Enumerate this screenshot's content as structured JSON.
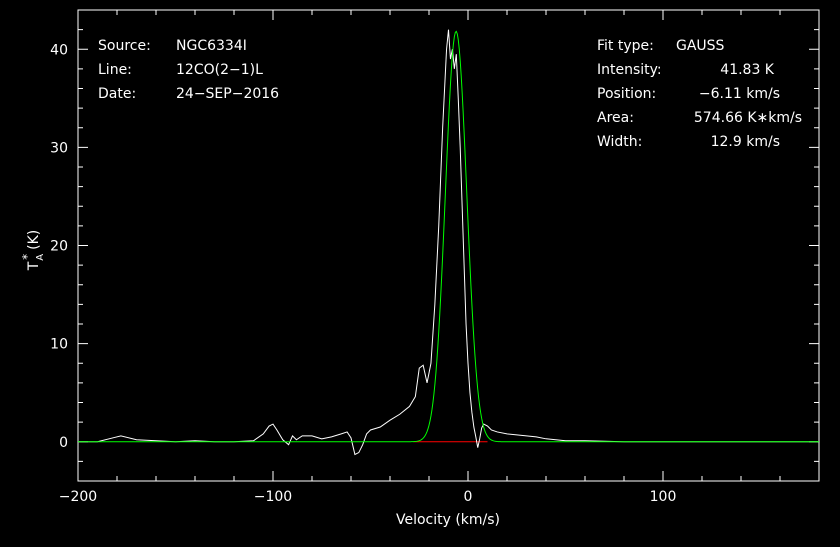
{
  "chart_data": {
    "type": "line",
    "xlabel": "Velocity (km/s)",
    "ylabel": "T_A^* (K)",
    "xlim": [
      -200,
      180
    ],
    "ylim": [
      -4,
      44
    ],
    "x_ticks": [
      -200,
      -100,
      0,
      100
    ],
    "x_tick_labels": [
      "−200",
      "−100",
      "0",
      "100"
    ],
    "y_ticks": [
      0,
      10,
      20,
      30,
      40
    ],
    "y_tick_labels": [
      "0",
      "10",
      "20",
      "30",
      "40"
    ],
    "grid": false,
    "legend": "none",
    "series": [
      {
        "color": "#ffffff",
        "x": [
          -200,
          -190,
          -182,
          -178,
          -170,
          -160,
          -150,
          -140,
          -130,
          -120,
          -110,
          -105,
          -102,
          -100,
          -98,
          -95,
          -92,
          -90,
          -88,
          -85,
          -80,
          -75,
          -70,
          -65,
          -62,
          -60,
          -58,
          -56,
          -54,
          -52,
          -50,
          -45,
          -40,
          -35,
          -30,
          -27,
          -25,
          -23,
          -21,
          -19,
          -17,
          -15,
          -13,
          -11,
          -10,
          -9,
          -8,
          -7,
          -6,
          -5,
          -4,
          -3,
          -2,
          -1,
          0,
          1,
          2,
          3,
          4,
          5,
          6,
          7,
          8,
          10,
          12,
          15,
          20,
          25,
          30,
          35,
          40,
          45,
          50,
          60,
          80,
          100,
          120,
          140,
          160,
          180
        ],
        "y": [
          0,
          0,
          0.4,
          0.6,
          0.2,
          0.1,
          0,
          0.1,
          0,
          0,
          0.1,
          0.8,
          1.6,
          1.8,
          1.2,
          0.2,
          -0.3,
          0.6,
          0.2,
          0.6,
          0.6,
          0.3,
          0.5,
          0.8,
          1.0,
          0.4,
          -1.3,
          -1.1,
          -0.3,
          0.8,
          1.2,
          1.5,
          2.2,
          2.8,
          3.6,
          4.6,
          7.5,
          7.8,
          6.0,
          8.0,
          14,
          22,
          32,
          40,
          42,
          39,
          40,
          38,
          39.5,
          35,
          30,
          24,
          18,
          12,
          8,
          5,
          3,
          1.5,
          0.5,
          -0.6,
          0.3,
          1.4,
          1.8,
          1.6,
          1.2,
          1.0,
          0.8,
          0.7,
          0.6,
          0.5,
          0.3,
          0.2,
          0.1,
          0.1,
          0,
          0,
          0,
          0,
          0,
          0
        ]
      },
      {
        "color": "#00ff00",
        "fit": "gaussian",
        "amplitude": 41.83,
        "center": -6.11,
        "fwhm": 12.9
      },
      {
        "color": "#ff0000",
        "x": [
          -28,
          10
        ],
        "y": [
          0,
          0
        ]
      }
    ]
  },
  "header_left": {
    "source_label": "Source:",
    "source_value": "NGC6334I",
    "line_label": "Line:",
    "line_value": "12CO(2−1)L",
    "date_label": "Date:",
    "date_value": "24−SEP−2016"
  },
  "header_right": {
    "fit_label": "Fit type:",
    "fit_value": "GAUSS",
    "intensity_label": "Intensity:",
    "intensity_value": "41.83 K",
    "position_label": "Position:",
    "position_value": "−6.11 km/s",
    "area_label": "Area:",
    "area_value": "574.66 K∗km/s",
    "width_label": "Width:",
    "width_value": "12.9 km/s"
  },
  "colors": {
    "background": "#000000",
    "axes": "#ffffff",
    "spectrum": "#ffffff",
    "fit": "#00ff00",
    "baseline": "#ff0000"
  }
}
